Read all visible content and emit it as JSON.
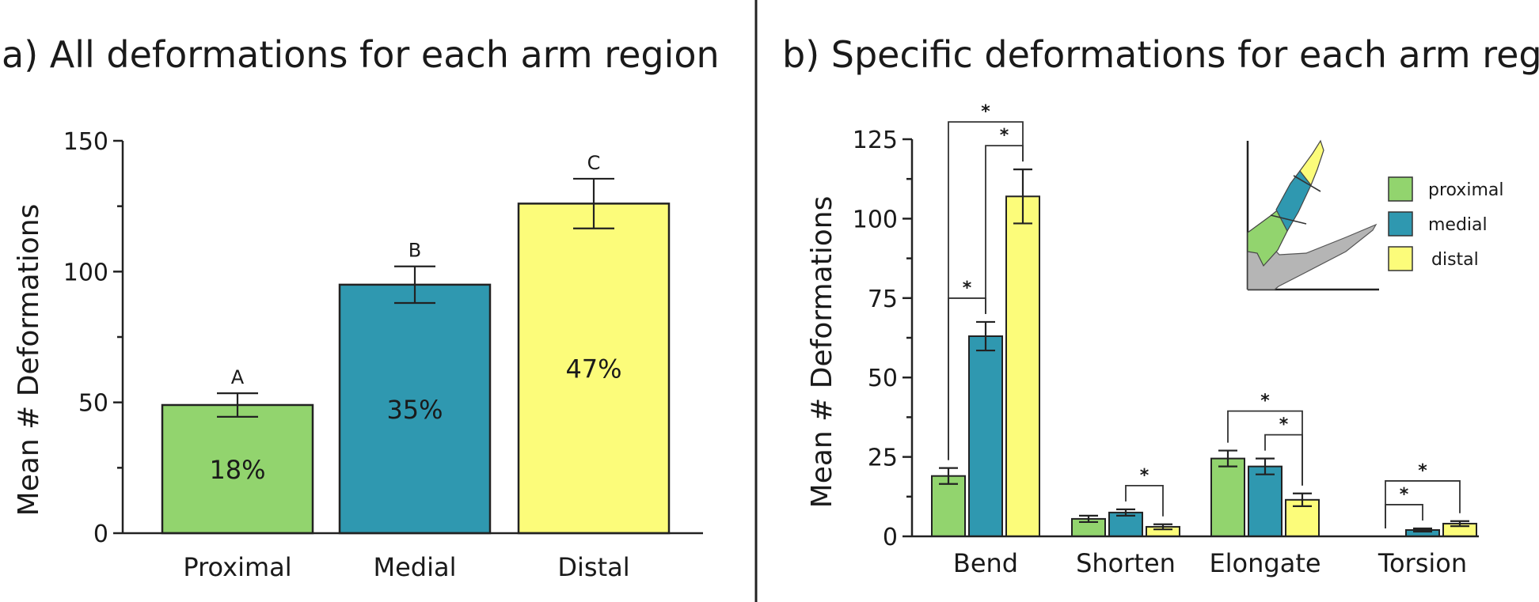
{
  "colors": {
    "proximal": "#92d46e",
    "medial": "#2f98b0",
    "distal": "#fcfc7a",
    "arm": "#b5b5b5"
  },
  "chart_data": [
    {
      "type": "bar",
      "title": "a) All deformations for each arm region",
      "ylabel": "Mean # Deformations",
      "xlabel": "",
      "ylim": [
        0,
        150
      ],
      "yticks": [
        "0",
        "50",
        "100",
        "150"
      ],
      "categories": [
        "Proximal",
        "Medial",
        "Distal"
      ],
      "values": [
        49,
        95,
        126
      ],
      "errors": [
        4.5,
        7,
        9.5
      ],
      "percent_labels": [
        "18%",
        "35%",
        "47%"
      ],
      "significance_letters": [
        "A",
        "B",
        "C"
      ]
    },
    {
      "type": "bar",
      "title": "b) Specific deformations for each arm region",
      "ylabel": "Mean # Deformations",
      "xlabel": "",
      "ylim": [
        0,
        125
      ],
      "yticks": [
        "0",
        "25",
        "50",
        "75",
        "100",
        "125"
      ],
      "categories": [
        "Bend",
        "Shorten",
        "Elongate",
        "Torsion"
      ],
      "series": [
        {
          "name": "proximal",
          "values": [
            19,
            5.5,
            24.5,
            0
          ],
          "errors": [
            2.5,
            1,
            2.5,
            0
          ]
        },
        {
          "name": "medial",
          "values": [
            63,
            7.5,
            22,
            2
          ],
          "errors": [
            4.5,
            1,
            2.5,
            0.5
          ]
        },
        {
          "name": "distal",
          "values": [
            107,
            3,
            11.5,
            4
          ],
          "errors": [
            8.5,
            0.8,
            2,
            0.8
          ]
        }
      ],
      "significance": [
        {
          "category": "Bend",
          "from": 0,
          "to": 1,
          "label": "*"
        },
        {
          "category": "Bend",
          "from": 0,
          "to": 2,
          "label": "*"
        },
        {
          "category": "Bend",
          "from": 1,
          "to": 2,
          "label": "*"
        },
        {
          "category": "Shorten",
          "from": 1,
          "to": 2,
          "label": "*"
        },
        {
          "category": "Elongate",
          "from": 0,
          "to": 2,
          "label": "*"
        },
        {
          "category": "Elongate",
          "from": 1,
          "to": 2,
          "label": "*"
        },
        {
          "category": "Torsion",
          "from": 0,
          "to": 1,
          "label": "*"
        },
        {
          "category": "Torsion",
          "from": 0,
          "to": 2,
          "label": "*"
        }
      ],
      "legend": {
        "position": "top-right",
        "entries": [
          "proximal",
          "medial",
          "distal"
        ]
      }
    }
  ]
}
